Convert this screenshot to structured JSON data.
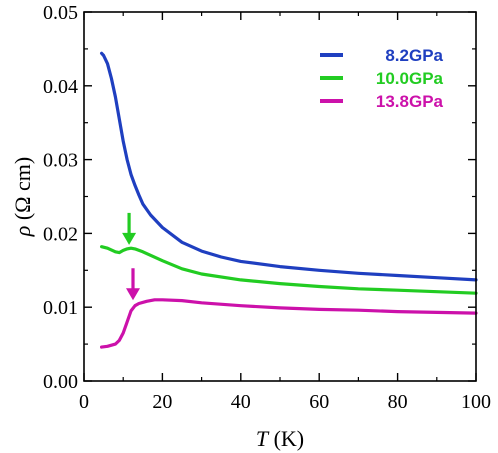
{
  "chart_data": {
    "type": "line",
    "xlabel_symbol": "T",
    "xlabel_unit": " (K)",
    "ylabel_symbol": "ρ",
    "ylabel_unit": " (Ω cm)",
    "xlim": [
      0,
      100
    ],
    "ylim": [
      0,
      0.05
    ],
    "xticks": [
      0,
      20,
      40,
      60,
      80,
      100
    ],
    "xtick_labels": [
      "0",
      "20",
      "40",
      "60",
      "80",
      "100"
    ],
    "yticks": [
      0,
      0.01,
      0.02,
      0.03,
      0.04,
      0.05
    ],
    "ytick_labels": [
      "0.00",
      "0.01",
      "0.02",
      "0.03",
      "0.04",
      "0.05"
    ],
    "grid": false,
    "legend_position": "top-right",
    "series": [
      {
        "name": "8.2GPa",
        "color": "#1f3fc0",
        "points": [
          [
            4.5,
            0.0444
          ],
          [
            5,
            0.0441
          ],
          [
            6,
            0.043
          ],
          [
            7,
            0.041
          ],
          [
            8,
            0.0385
          ],
          [
            9,
            0.0355
          ],
          [
            10,
            0.0325
          ],
          [
            11,
            0.03
          ],
          [
            12,
            0.028
          ],
          [
            13,
            0.0265
          ],
          [
            14,
            0.0252
          ],
          [
            15,
            0.024
          ],
          [
            17,
            0.0225
          ],
          [
            20,
            0.0208
          ],
          [
            25,
            0.0188
          ],
          [
            30,
            0.0176
          ],
          [
            35,
            0.0168
          ],
          [
            40,
            0.0162
          ],
          [
            50,
            0.0155
          ],
          [
            60,
            0.015
          ],
          [
            70,
            0.0146
          ],
          [
            80,
            0.0143
          ],
          [
            90,
            0.014
          ],
          [
            100,
            0.0137
          ]
        ]
      },
      {
        "name": "10.0GPa",
        "color": "#22cc22",
        "points": [
          [
            4.5,
            0.0182
          ],
          [
            6,
            0.018
          ],
          [
            8,
            0.0175
          ],
          [
            9,
            0.0174
          ],
          [
            10,
            0.0177
          ],
          [
            11,
            0.0179
          ],
          [
            12,
            0.018
          ],
          [
            13,
            0.0179
          ],
          [
            15,
            0.0175
          ],
          [
            20,
            0.0163
          ],
          [
            25,
            0.0152
          ],
          [
            30,
            0.0145
          ],
          [
            40,
            0.0137
          ],
          [
            50,
            0.0132
          ],
          [
            60,
            0.0128
          ],
          [
            70,
            0.0125
          ],
          [
            80,
            0.0123
          ],
          [
            90,
            0.0121
          ],
          [
            100,
            0.0119
          ]
        ]
      },
      {
        "name": "13.8GPa",
        "color": "#cc11aa",
        "points": [
          [
            4.5,
            0.0046
          ],
          [
            6,
            0.0047
          ],
          [
            8,
            0.005
          ],
          [
            9,
            0.0055
          ],
          [
            10,
            0.0065
          ],
          [
            11,
            0.008
          ],
          [
            12,
            0.0095
          ],
          [
            13,
            0.0102
          ],
          [
            14,
            0.0105
          ],
          [
            16,
            0.0108
          ],
          [
            18,
            0.011
          ],
          [
            20,
            0.011
          ],
          [
            25,
            0.0109
          ],
          [
            30,
            0.0106
          ],
          [
            40,
            0.0102
          ],
          [
            50,
            0.0099
          ],
          [
            60,
            0.0097
          ],
          [
            70,
            0.0096
          ],
          [
            80,
            0.0094
          ],
          [
            90,
            0.0093
          ],
          [
            100,
            0.0092
          ]
        ]
      }
    ],
    "annotations": [
      {
        "type": "arrow",
        "color": "#22cc22",
        "x": 11.5,
        "y": 0.0179
      },
      {
        "type": "arrow",
        "color": "#cc11aa",
        "x": 12.5,
        "y": 0.0104
      }
    ]
  }
}
